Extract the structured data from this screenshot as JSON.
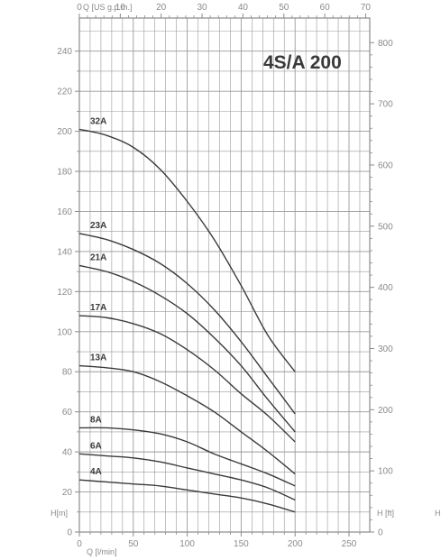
{
  "chart_data": {
    "type": "line",
    "title": "4S/A 200",
    "x_bottom_label": "Q [l/min]",
    "x_top_label": "Q [US g.p.m.]",
    "y_left_label": "H[m]",
    "y_right_label": "H [ft]",
    "extra_label": "H",
    "x_bottom_ticks": [
      "0",
      "50",
      "100",
      "150",
      "200",
      "250"
    ],
    "x_top_ticks": [
      "0",
      "10",
      "20",
      "30",
      "40",
      "50",
      "60",
      "70"
    ],
    "y_left_ticks": [
      "0",
      "20",
      "40",
      "60",
      "80",
      "100",
      "120",
      "140",
      "160",
      "180",
      "200",
      "220",
      "240"
    ],
    "y_right_ticks": [
      "0",
      "100",
      "200",
      "300",
      "400",
      "500",
      "600",
      "700",
      "800"
    ],
    "xlim": [
      0,
      260
    ],
    "ylim": [
      0,
      247
    ],
    "grid": true,
    "series": [
      {
        "name": "32A",
        "x": [
          0,
          25,
          50,
          75,
          100,
          125,
          150,
          175,
          200
        ],
        "y": [
          201,
          198,
          192,
          181,
          165,
          146,
          123,
          98,
          80
        ]
      },
      {
        "name": "23A",
        "x": [
          0,
          25,
          50,
          75,
          100,
          125,
          150,
          175,
          200
        ],
        "y": [
          149,
          146,
          141,
          134,
          124,
          111,
          95,
          77,
          59
        ]
      },
      {
        "name": "21A",
        "x": [
          0,
          25,
          50,
          75,
          100,
          125,
          150,
          175,
          200
        ],
        "y": [
          133,
          130,
          125,
          118,
          109,
          97,
          83,
          66,
          50
        ]
      },
      {
        "name": "17A",
        "x": [
          0,
          25,
          50,
          75,
          100,
          125,
          150,
          175,
          200
        ],
        "y": [
          108,
          107,
          104,
          99,
          91,
          81,
          69,
          58,
          45
        ]
      },
      {
        "name": "13A",
        "x": [
          0,
          25,
          50,
          75,
          100,
          125,
          150,
          175,
          200
        ],
        "y": [
          83,
          82,
          80,
          75,
          68,
          60,
          50,
          40,
          29
        ]
      },
      {
        "name": "8A",
        "x": [
          0,
          25,
          50,
          75,
          100,
          125,
          150,
          175,
          200
        ],
        "y": [
          52,
          52,
          51,
          49,
          45,
          39,
          34,
          29,
          23
        ]
      },
      {
        "name": "6A",
        "x": [
          0,
          25,
          50,
          75,
          100,
          125,
          150,
          175,
          200
        ],
        "y": [
          39,
          38,
          37,
          35,
          32,
          29,
          26,
          22,
          16
        ]
      },
      {
        "name": "4A",
        "x": [
          0,
          25,
          50,
          75,
          100,
          125,
          150,
          175,
          200
        ],
        "y": [
          26,
          25,
          24,
          23,
          21,
          19,
          17,
          14,
          10
        ]
      }
    ],
    "colors": {
      "curve": "#3a3a3a",
      "grid": "#9a9a9a",
      "axis": "#8a8a8a"
    }
  }
}
